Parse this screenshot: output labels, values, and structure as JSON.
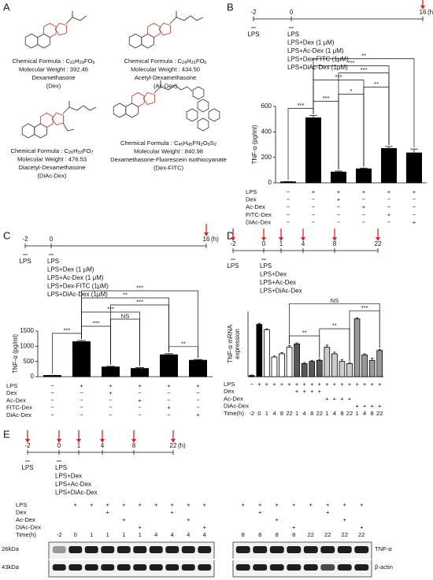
{
  "panels": [
    "A",
    "B",
    "C",
    "D",
    "E"
  ],
  "compounds": [
    {
      "formula": "Chemical Formula : C22H29FO5",
      "weight": "Molecular Weight : 392.46",
      "name": "Dexamethasone",
      "abbrev": "(Dex)"
    },
    {
      "formula": "Chemical Formula : C24H31FO6",
      "weight": "Molecular Weight : 434.50",
      "name": "Acetyl-Dexamethasone",
      "abbrev": "(Ac-Dex)"
    },
    {
      "formula": "Chemical Formula : C26H33FO7",
      "weight": "Molecular Weight : 476.53",
      "name": "Diacetyl-Dexamethasone",
      "abbrev": "(DiAc-Dex)"
    },
    {
      "formula": "Chemical Formula : C45H45FN2O9S2",
      "weight": "Molecular Weight : 840.98",
      "name": "Dexamethasone-Fluorescein isothiocyanate",
      "abbrev": "(Dex-FITC)"
    }
  ],
  "timelines": [
    {
      "ticks": [
        "-2",
        "0",
        "16"
      ],
      "unit": "(h)",
      "arrows": [
        false,
        false,
        true
      ],
      "first_label": "LPS",
      "treatments": [
        "LPS",
        "LPS+Dex (1 μM)",
        "LPS+Ac-Dex (1 μM)",
        "LPS+Dex-FITC (1μM)",
        "LPS+DiAc-Dex (1μM)"
      ]
    },
    {
      "ticks": [
        "-2",
        "0",
        "16"
      ],
      "unit": "(h)",
      "arrows": [
        false,
        false,
        true
      ],
      "first_label": "LPS",
      "treatments": [
        "LPS",
        "LPS+Dex (1 μM)",
        "LPS+Ac-Dex (1 μM)",
        "LPS+Dex-FITC (1μM)",
        "LPS+DiAc-Dex (1μM)"
      ]
    },
    {
      "ticks": [
        "-2",
        "0",
        "1",
        "4",
        "8",
        "22"
      ],
      "arrows": [
        true,
        true,
        true,
        true,
        true,
        true
      ],
      "first_label": "LPS",
      "treatments": [
        "LPS",
        "LPS+Dex",
        "LPS+Ac-Dex",
        "LPS+DiAc-Dex"
      ]
    },
    {
      "ticks": [
        "-2",
        "0",
        "1",
        "4",
        "8",
        "22"
      ],
      "unit": "(h)",
      "arrows": [
        true,
        true,
        true,
        true,
        true,
        true
      ],
      "first_label": "LPS",
      "treatments": [
        "LPS",
        "LPS+Dex",
        "LPS+Ac-Dex",
        "LPS+DiAc-Dex"
      ]
    }
  ],
  "chart_data": [
    {
      "type": "bar",
      "y_label": "TNF-α (pg/ml)",
      "ylim": [
        0,
        600
      ],
      "yticks": [
        0,
        200,
        400,
        600
      ],
      "values": [
        8,
        510,
        85,
        110,
        270,
        235
      ],
      "errors": [
        2,
        18,
        8,
        6,
        15,
        30
      ],
      "color": "#000000",
      "annotations": [
        {
          "text": "***",
          "between": [
            0,
            1
          ]
        },
        {
          "text": "***",
          "between": [
            1,
            2
          ]
        },
        {
          "text": "*",
          "between": [
            2,
            3
          ]
        },
        {
          "text": "**",
          "between": [
            3,
            4
          ]
        },
        {
          "text": "***",
          "between": [
            1,
            3
          ]
        },
        {
          "text": "***",
          "between": [
            2,
            4
          ]
        },
        {
          "text": "***",
          "between": [
            1,
            4
          ]
        },
        {
          "text": "**",
          "between": [
            1,
            5
          ]
        }
      ],
      "conditions": [
        {
          "name": "LPS",
          "marks": [
            "−",
            "+",
            "+",
            "+",
            "+",
            "+"
          ]
        },
        {
          "name": "Dex",
          "marks": [
            "−",
            "−",
            "+",
            "−",
            "−",
            "−"
          ]
        },
        {
          "name": "Ac-Dex",
          "marks": [
            "−",
            "−",
            "−",
            "+",
            "−",
            "−"
          ]
        },
        {
          "name": "FITC-Dex",
          "marks": [
            "−",
            "−",
            "−",
            "−",
            "+",
            "−"
          ]
        },
        {
          "name": "DiAc-Dex",
          "marks": [
            "−",
            "−",
            "−",
            "−",
            "−",
            "+"
          ]
        }
      ]
    },
    {
      "type": "bar",
      "y_label": "TNF-α (pg/ml)",
      "ylim": [
        0,
        1500
      ],
      "yticks": [
        0,
        500,
        1000,
        1500
      ],
      "values": [
        40,
        1150,
        320,
        270,
        720,
        540
      ],
      "errors": [
        5,
        40,
        20,
        30,
        35,
        25
      ],
      "color": "#000000",
      "annotations": [
        {
          "text": "***",
          "between": [
            0,
            1
          ]
        },
        {
          "text": "***",
          "between": [
            1,
            2
          ]
        },
        {
          "text": "NS",
          "between": [
            2,
            3
          ]
        },
        {
          "text": "**",
          "between": [
            4,
            5
          ]
        },
        {
          "text": "***",
          "between": [
            1,
            3
          ]
        },
        {
          "text": "***",
          "between": [
            2,
            4
          ]
        },
        {
          "text": "**",
          "between": [
            1,
            4
          ]
        },
        {
          "text": "***",
          "between": [
            1,
            5
          ]
        }
      ],
      "conditions": [
        {
          "name": "LPS",
          "marks": [
            "−",
            "+",
            "+",
            "+",
            "+",
            "+"
          ]
        },
        {
          "name": "Dex",
          "marks": [
            "−",
            "−",
            "+",
            "−",
            "−",
            "−"
          ]
        },
        {
          "name": "Ac-Dex",
          "marks": [
            "−",
            "−",
            "−",
            "+",
            "−",
            "−"
          ]
        },
        {
          "name": "FITC-Dex",
          "marks": [
            "−",
            "−",
            "−",
            "−",
            "+",
            "−"
          ]
        },
        {
          "name": "DiAc-Dex",
          "marks": [
            "−",
            "−",
            "−",
            "−",
            "−",
            "+"
          ]
        }
      ]
    },
    {
      "type": "bar",
      "y_label": [
        "TNF-α mRNA",
        "expression"
      ],
      "ylim": [
        0,
        60
      ],
      "values": [
        1,
        48,
        43,
        18,
        21,
        27,
        30,
        12,
        14,
        15,
        27,
        21,
        14,
        12,
        53,
        20,
        15,
        24
      ],
      "errors": [
        0.5,
        1,
        1,
        1,
        1,
        1.5,
        1,
        1,
        1,
        1,
        2,
        1.5,
        1.5,
        1,
        1,
        1,
        2,
        1
      ],
      "colors": [
        "#000000",
        "#000000",
        "#ffffff",
        "#ffffff",
        "#ffffff",
        "#ffffff",
        "#595959",
        "#595959",
        "#595959",
        "#595959",
        "#cccccc",
        "#cccccc",
        "#cccccc",
        "#cccccc",
        "#999999",
        "#999999",
        "#999999",
        "#999999"
      ],
      "annotations": [
        {
          "text": "**",
          "between": [
            5,
            9
          ]
        },
        {
          "text": "**",
          "between": [
            9,
            13
          ]
        },
        {
          "text": "***",
          "between": [
            13,
            17
          ]
        },
        {
          "text": "NS",
          "between": [
            5,
            17
          ]
        }
      ],
      "conditions": [
        {
          "name": "LPS",
          "marks": [
            "−",
            "+",
            "+",
            "+",
            "+",
            "+",
            "+",
            "+",
            "+",
            "+",
            "+",
            "+",
            "+",
            "+",
            "+",
            "+",
            "+",
            "+"
          ]
        },
        {
          "name": "Dex",
          "marks": [
            null,
            null,
            null,
            null,
            null,
            null,
            "+",
            "+",
            "+",
            "+",
            null,
            null,
            null,
            null,
            null,
            null,
            null,
            null
          ]
        },
        {
          "name": "Ac-Dex",
          "marks": [
            null,
            null,
            null,
            null,
            null,
            null,
            null,
            null,
            null,
            null,
            "+",
            "+",
            "+",
            "+",
            null,
            null,
            null,
            null
          ]
        },
        {
          "name": "DiAc-Dex",
          "marks": [
            null,
            null,
            null,
            null,
            null,
            null,
            null,
            null,
            null,
            null,
            null,
            null,
            null,
            null,
            "+",
            "+",
            "+",
            "+"
          ]
        },
        {
          "name": "Time(h)",
          "marks": [
            "-2",
            "0",
            "1",
            "4",
            "8",
            "22",
            "1",
            "4",
            "8",
            "22",
            "1",
            "4",
            "8",
            "22",
            "1",
            "4",
            "8",
            "22"
          ]
        }
      ]
    }
  ],
  "blot": {
    "conditions": [
      {
        "name": "LPS",
        "marks": [
          null,
          "+",
          "+",
          "+",
          "+",
          "+",
          "+",
          "+",
          "+",
          "+",
          "+",
          "+",
          "+",
          "+",
          "+",
          "+",
          "+",
          "+"
        ]
      },
      {
        "name": "Dex",
        "marks": [
          null,
          null,
          null,
          "+",
          null,
          null,
          null,
          "+",
          null,
          null,
          null,
          "+",
          null,
          null,
          null,
          "+",
          null,
          null
        ]
      },
      {
        "name": "Ac-Dex",
        "marks": [
          null,
          null,
          null,
          null,
          "+",
          null,
          null,
          null,
          "+",
          null,
          null,
          null,
          "+",
          null,
          null,
          null,
          "+",
          null
        ]
      },
      {
        "name": "DiAc-Dex",
        "marks": [
          null,
          null,
          null,
          null,
          null,
          "+",
          null,
          null,
          null,
          "+",
          null,
          null,
          null,
          "+",
          null,
          null,
          null,
          "+"
        ]
      },
      {
        "name": "Time(h)",
        "marks": [
          "-2",
          "0",
          "1",
          "1",
          "1",
          "1",
          "4",
          "4",
          "4",
          "4",
          "8",
          "8",
          "8",
          "8",
          "22",
          "22",
          "22",
          "22"
        ]
      }
    ],
    "markers": [
      "26kDa",
      "43kDa"
    ],
    "targets": [
      "TNF-α",
      "β-actin"
    ]
  }
}
